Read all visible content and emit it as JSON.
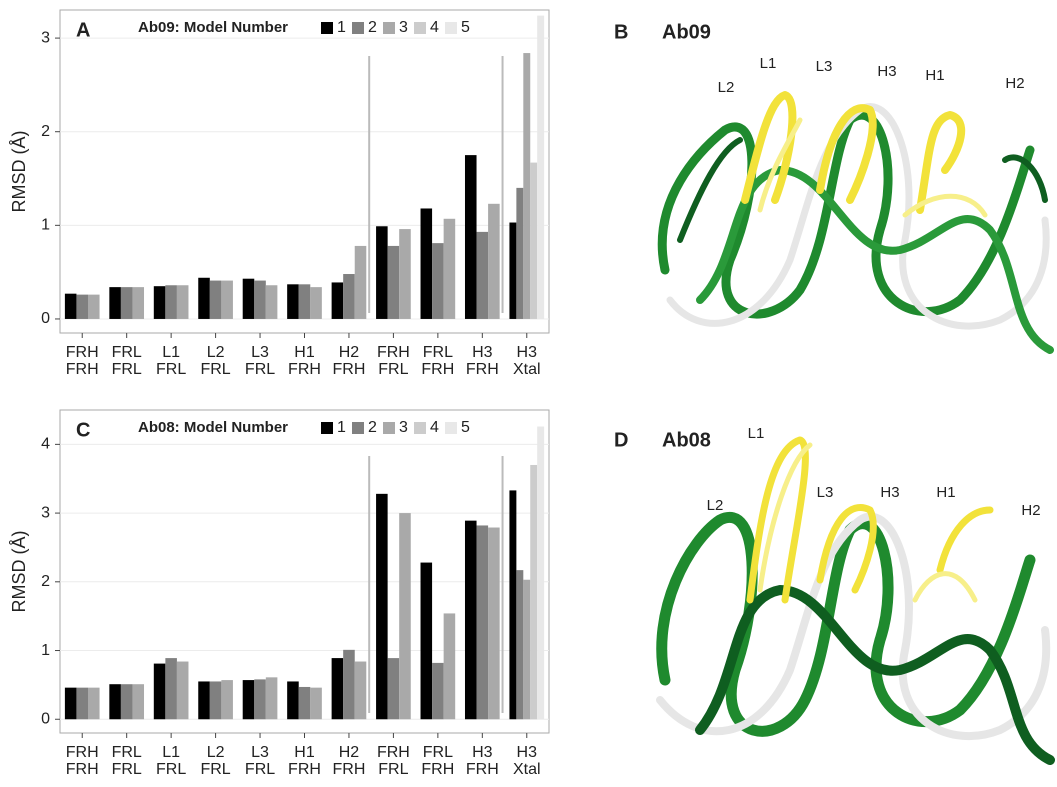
{
  "chart_data": [
    {
      "type": "bar",
      "panel_label": "A",
      "legend_title": "Ab09: Model Number",
      "y_label": "RMSD (Å)",
      "categories": [
        [
          "FRH",
          "FRH"
        ],
        [
          "FRL",
          "FRL"
        ],
        [
          "L1",
          "FRL"
        ],
        [
          "L2",
          "FRL"
        ],
        [
          "L3",
          "FRL"
        ],
        [
          "H1",
          "FRH"
        ],
        [
          "H2",
          "FRH"
        ],
        [
          "FRH",
          "FRL"
        ],
        [
          "FRL",
          "FRH"
        ],
        [
          "H3",
          "FRH"
        ],
        [
          "H3",
          "Xtal"
        ]
      ],
      "series": [
        {
          "name": "1",
          "color": "#000000",
          "values": [
            0.27,
            0.34,
            0.35,
            0.44,
            0.43,
            0.37,
            0.39,
            0.99,
            1.18,
            1.75,
            1.03
          ]
        },
        {
          "name": "2",
          "color": "#808080",
          "values": [
            0.26,
            0.34,
            0.36,
            0.41,
            0.41,
            0.37,
            0.48,
            0.78,
            0.81,
            0.93,
            1.4
          ]
        },
        {
          "name": "3",
          "color": "#a9a9a9",
          "values": [
            0.26,
            0.34,
            0.36,
            0.41,
            0.36,
            0.34,
            0.78,
            0.96,
            1.07,
            1.23,
            2.84
          ]
        },
        {
          "name": "4",
          "color": "#cccccc",
          "values": [
            null,
            null,
            null,
            null,
            null,
            null,
            null,
            null,
            null,
            null,
            1.67
          ]
        },
        {
          "name": "5",
          "color": "#e8e8e8",
          "values": [
            null,
            null,
            null,
            null,
            null,
            null,
            null,
            null,
            null,
            null,
            3.24
          ]
        }
      ],
      "ylim": [
        -0.15,
        3.3
      ],
      "yticks": [
        0,
        1,
        2,
        3
      ],
      "grid": true
    },
    {
      "type": "bar",
      "panel_label": "C",
      "legend_title": "Ab08: Model Number",
      "y_label": "RMSD (Å)",
      "categories": [
        [
          "FRH",
          "FRH"
        ],
        [
          "FRL",
          "FRL"
        ],
        [
          "L1",
          "FRL"
        ],
        [
          "L2",
          "FRL"
        ],
        [
          "L3",
          "FRL"
        ],
        [
          "H1",
          "FRH"
        ],
        [
          "H2",
          "FRH"
        ],
        [
          "FRH",
          "FRL"
        ],
        [
          "FRL",
          "FRH"
        ],
        [
          "H3",
          "FRH"
        ],
        [
          "H3",
          "Xtal"
        ]
      ],
      "series": [
        {
          "name": "1",
          "color": "#000000",
          "values": [
            0.46,
            0.51,
            0.81,
            0.55,
            0.57,
            0.55,
            0.89,
            3.28,
            2.28,
            2.89,
            3.33
          ]
        },
        {
          "name": "2",
          "color": "#808080",
          "values": [
            0.46,
            0.51,
            0.89,
            0.55,
            0.58,
            0.47,
            1.01,
            0.89,
            0.82,
            2.82,
            2.17
          ]
        },
        {
          "name": "3",
          "color": "#a9a9a9",
          "values": [
            0.46,
            0.51,
            0.84,
            0.57,
            0.61,
            0.46,
            0.84,
            3.0,
            1.54,
            2.79,
            2.03
          ]
        },
        {
          "name": "4",
          "color": "#cccccc",
          "values": [
            null,
            null,
            null,
            null,
            null,
            null,
            null,
            null,
            null,
            null,
            3.7
          ]
        },
        {
          "name": "5",
          "color": "#e8e8e8",
          "values": [
            null,
            null,
            null,
            null,
            null,
            null,
            null,
            null,
            null,
            null,
            4.26
          ]
        }
      ],
      "ylim": [
        -0.2,
        4.5
      ],
      "yticks": [
        0,
        1,
        2,
        3,
        4
      ],
      "grid": true
    }
  ],
  "structures": [
    {
      "panel_label": "B",
      "title": "Ab09",
      "regions": [
        "L2",
        "L1",
        "L3",
        "H3",
        "H1",
        "H2"
      ]
    },
    {
      "panel_label": "D",
      "title": "Ab08",
      "regions": [
        "L1",
        "L2",
        "L3",
        "H3",
        "H1",
        "H2"
      ]
    }
  ]
}
